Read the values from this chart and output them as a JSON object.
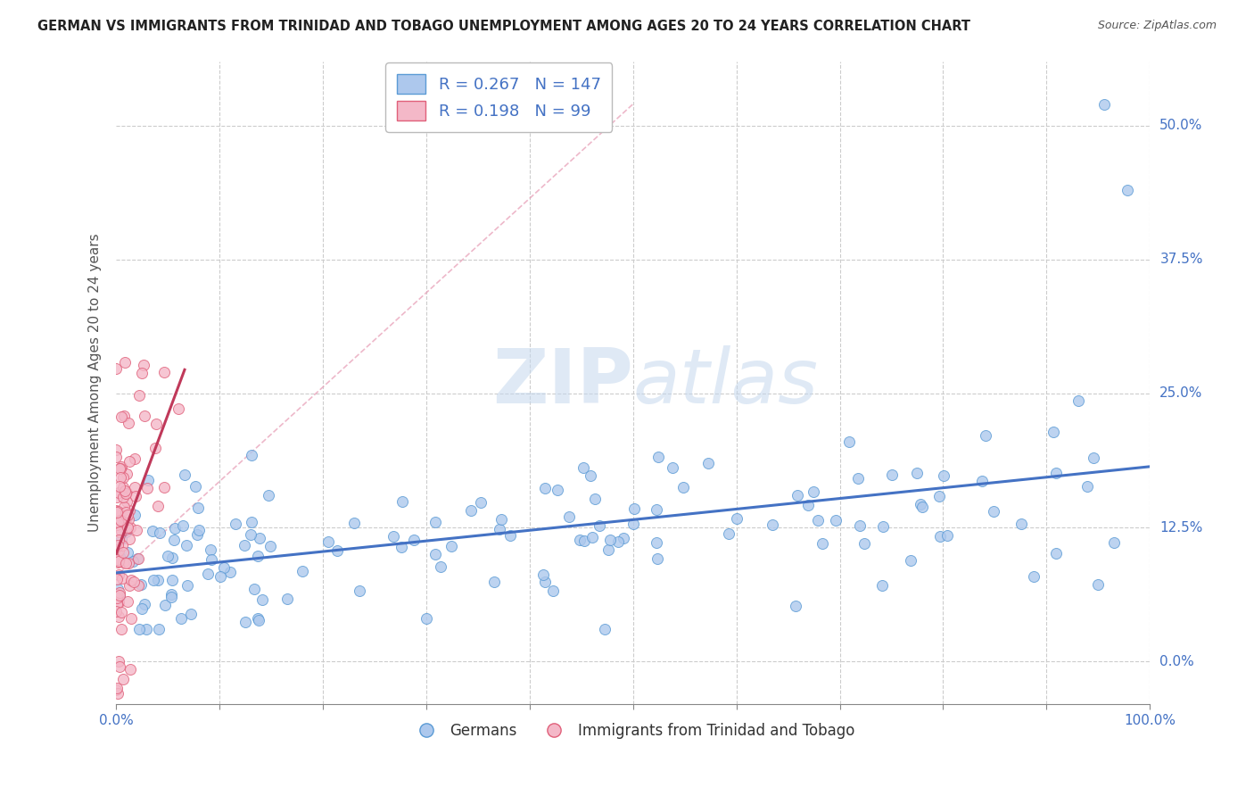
{
  "title": "GERMAN VS IMMIGRANTS FROM TRINIDAD AND TOBAGO UNEMPLOYMENT AMONG AGES 20 TO 24 YEARS CORRELATION CHART",
  "source": "Source: ZipAtlas.com",
  "ylabel": "Unemployment Among Ages 20 to 24 years",
  "xlim": [
    0.0,
    1.0
  ],
  "ylim": [
    -0.04,
    0.56
  ],
  "yticks": [
    0.0,
    0.125,
    0.25,
    0.375,
    0.5
  ],
  "yticklabels": [
    "0.0%",
    "12.5%",
    "25.0%",
    "37.5%",
    "50.0%"
  ],
  "xticks": [
    0.0,
    0.1,
    0.2,
    0.3,
    0.4,
    0.5,
    0.6,
    0.7,
    0.8,
    0.9,
    1.0
  ],
  "xticklabels_sparse": {
    "0.0": "0.0%",
    "1.0": "100.0%"
  },
  "german_color": "#adc8ed",
  "german_edge_color": "#5b9bd5",
  "trinidad_color": "#f4b8c8",
  "trinidad_edge_color": "#e0607a",
  "trend_german_color": "#4472c4",
  "trend_trinidad_color": "#c0395a",
  "diag_line_color": "#e8a0b8",
  "R_german": 0.267,
  "N_german": 147,
  "R_trinidad": 0.198,
  "N_trinidad": 99,
  "watermark_zip": "ZIP",
  "watermark_atlas": "atlas",
  "legend_german": "Germans",
  "legend_trinidad": "Immigrants from Trinidad and Tobago",
  "background_color": "#ffffff",
  "grid_color": "#cccccc",
  "title_color": "#222222",
  "source_color": "#555555",
  "tick_color": "#4472c4",
  "ylabel_color": "#555555"
}
